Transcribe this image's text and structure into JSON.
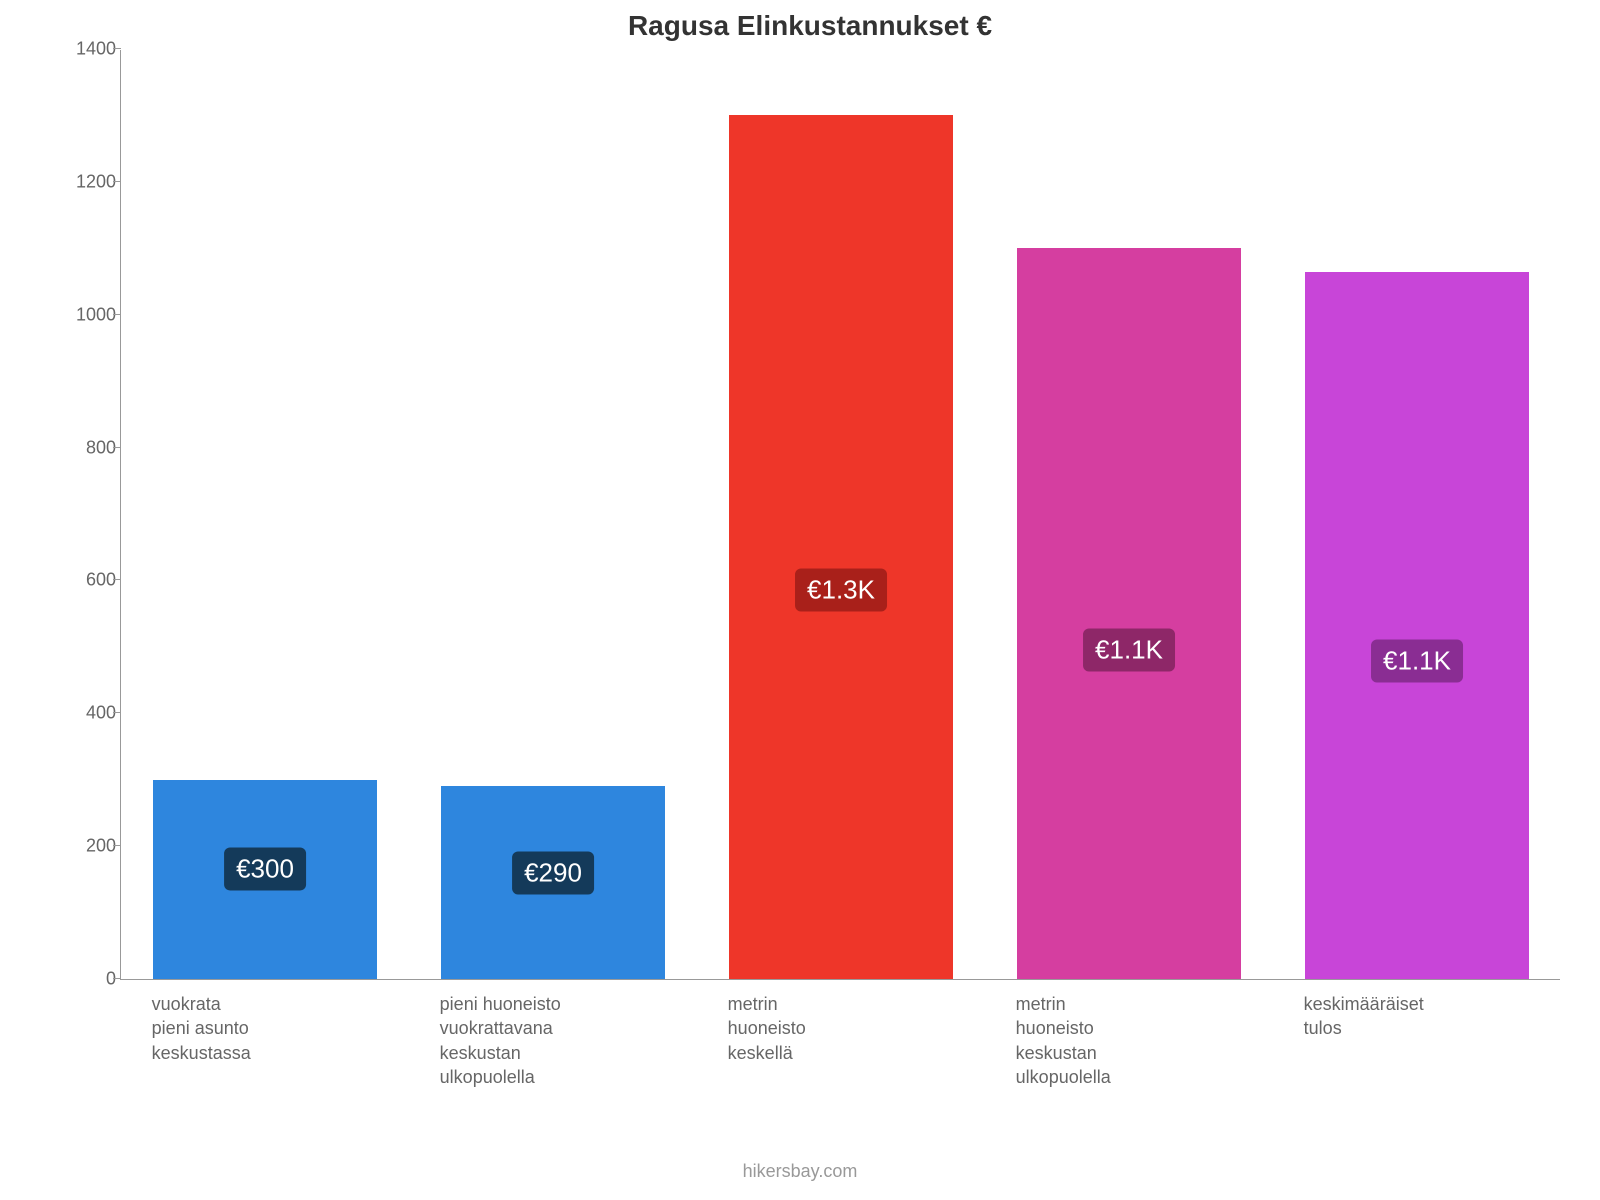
{
  "chart": {
    "type": "bar",
    "title": "Ragusa Elinkustannukset €",
    "title_fontsize": 28,
    "title_color": "#333333",
    "background_color": "#ffffff",
    "ylim": [
      0,
      1400
    ],
    "ytick_step": 200,
    "yticks": [
      0,
      200,
      400,
      600,
      800,
      1000,
      1200,
      1400
    ],
    "axis_color": "#999999",
    "ytick_color": "#666666",
    "ytick_fontsize": 18,
    "xlabel_color": "#666666",
    "xlabel_fontsize": 18,
    "bar_width_ratio": 0.78,
    "categories": [
      [
        "vuokrata",
        "pieni asunto",
        "keskustassa"
      ],
      [
        "pieni huoneisto",
        "vuokrattavana",
        "keskustan",
        "ulkopuolella"
      ],
      [
        "metrin",
        "huoneisto",
        "keskellä"
      ],
      [
        "metrin",
        "huoneisto",
        "keskustan",
        "ulkopuolella"
      ],
      [
        "keskimääräiset",
        "tulos"
      ]
    ],
    "values": [
      300,
      290,
      1300,
      1100,
      1065
    ],
    "value_labels": [
      "€300",
      "€290",
      "€1.3K",
      "€1.1K",
      "€1.1K"
    ],
    "bar_colors": [
      "#2e86de",
      "#2e86de",
      "#ee3629",
      "#d53ea0",
      "#c845d8"
    ],
    "label_bg_colors": [
      "#143a5a",
      "#143a5a",
      "#a9201a",
      "#8e2768",
      "#8a2d93"
    ],
    "label_text_color": "#ffffff",
    "label_fontsize": 26,
    "attribution": "hikersbay.com",
    "attribution_color": "#999999",
    "attribution_fontsize": 18
  }
}
